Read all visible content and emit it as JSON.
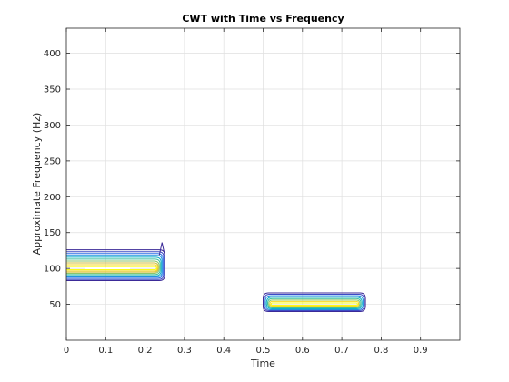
{
  "chart_data": {
    "type": "contour",
    "title": "CWT with Time vs Frequency",
    "xlabel": "Time",
    "ylabel": "Approximate Frequency (Hz)",
    "xlim": [
      0,
      1
    ],
    "ylim": [
      0,
      435
    ],
    "grid": true,
    "x_ticks": [
      0,
      0.1,
      0.2,
      0.3,
      0.4,
      0.5,
      0.6,
      0.7,
      0.8,
      0.9
    ],
    "x_tick_labels": [
      "0",
      "0.1",
      "0.2",
      "0.3",
      "0.4",
      "0.5",
      "0.6",
      "0.7",
      "0.8",
      "0.9"
    ],
    "y_ticks": [
      50,
      100,
      150,
      200,
      250,
      300,
      350,
      400
    ],
    "y_tick_labels": [
      "50",
      "100",
      "150",
      "200",
      "250",
      "300",
      "350",
      "400"
    ],
    "colormap": [
      "#3b2a98",
      "#3d4bc6",
      "#2f6fe6",
      "#1f92e0",
      "#12b0c6",
      "#3dc19e",
      "#8ac66a",
      "#d2bd3b",
      "#f7d823",
      "#f9fb14"
    ],
    "series": [
      {
        "time_range": [
          0,
          0.25
        ],
        "center_frequency": 100,
        "outer_frequency_range": [
          83,
          126
        ],
        "levels": 10
      },
      {
        "time_range": [
          0.5,
          0.76
        ],
        "center_frequency": 50,
        "outer_frequency_range": [
          40,
          66
        ],
        "levels": 8
      }
    ]
  }
}
